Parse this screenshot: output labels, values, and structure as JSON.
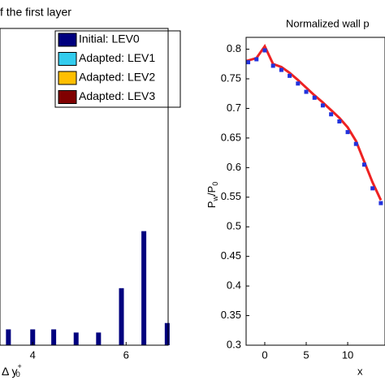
{
  "chart_data": [
    {
      "type": "bar",
      "title": "f the first layer",
      "x_label": {
        "text": "Δ y",
        "sub": "0",
        "sup": "+"
      },
      "x": [
        3.48,
        4.0,
        4.45,
        4.93,
        5.41,
        5.9,
        6.38,
        6.88
      ],
      "values": [
        0.05,
        0.05,
        0.05,
        0.04,
        0.04,
        0.18,
        0.36,
        0.07
      ],
      "xlim": [
        3.3,
        6.9
      ],
      "xticks": [
        4,
        6
      ],
      "ylim": [
        0,
        1
      ],
      "series": [
        {
          "name": "Initial: LEV0",
          "color": "#00007f"
        },
        {
          "name": "Adapted: LEV1",
          "color": "#33ccee"
        },
        {
          "name": "Adapted: LEV2",
          "color": "#ffbf00"
        },
        {
          "name": "Adapted: LEV3",
          "color": "#800000"
        }
      ],
      "legend": "upper right"
    },
    {
      "type": "line",
      "title": "Normalized wall p",
      "x_label": "x",
      "y_label": {
        "text": "P",
        "sub": "w",
        "text2": "/P",
        "sub2": "0"
      },
      "xlim": [
        -2.25,
        14.5
      ],
      "xticks": [
        0,
        5,
        10
      ],
      "ylim": [
        0.3,
        0.82
      ],
      "yticks": [
        0.3,
        0.35,
        0.4,
        0.45,
        0.5,
        0.55,
        0.6,
        0.65,
        0.7,
        0.75,
        0.8
      ],
      "series": [
        {
          "color": "#ee2222",
          "marker": "none",
          "x": [
            -2.25,
            -1,
            0,
            0.5,
            1,
            2,
            3,
            4,
            5,
            6,
            7,
            8,
            9,
            10,
            11,
            12,
            13,
            14
          ],
          "values": [
            0.78,
            0.785,
            0.805,
            0.79,
            0.775,
            0.77,
            0.76,
            0.748,
            0.735,
            0.722,
            0.71,
            0.697,
            0.684,
            0.668,
            0.645,
            0.61,
            0.575,
            0.545
          ]
        },
        {
          "color": "#2233dd",
          "marker": "square",
          "x": [
            -2,
            -1,
            0,
            1,
            2,
            3,
            4,
            5,
            6,
            7,
            8,
            9,
            10,
            11,
            12,
            13,
            14
          ],
          "values": [
            0.778,
            0.783,
            0.798,
            0.772,
            0.765,
            0.755,
            0.742,
            0.728,
            0.718,
            0.705,
            0.69,
            0.678,
            0.66,
            0.64,
            0.605,
            0.565,
            0.54
          ]
        }
      ]
    }
  ]
}
